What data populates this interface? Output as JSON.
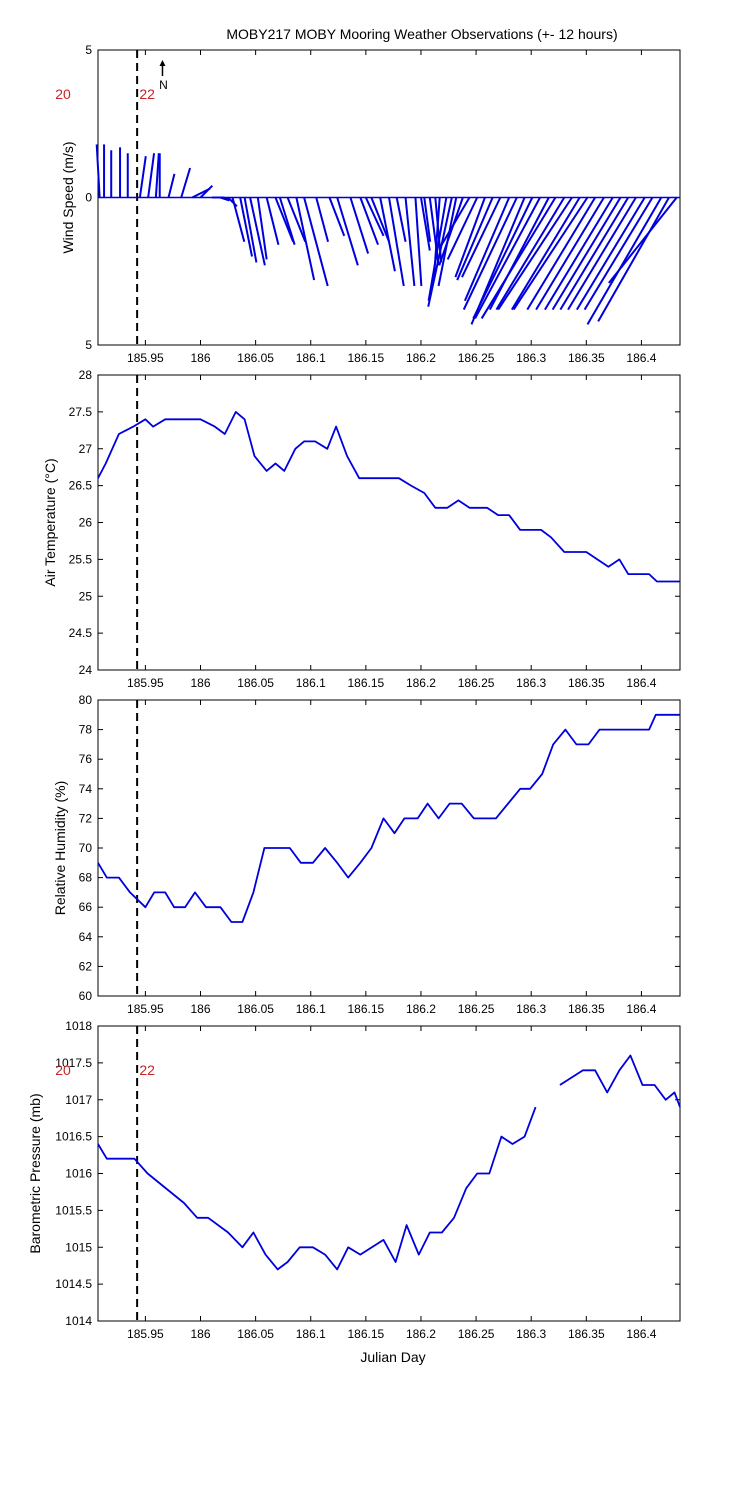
{
  "figure_title": "MOBY217 MOBY Mooring Weather Observations (+- 12 hours)",
  "colors": {
    "series": "#0000dd",
    "hour_label": "#cc2222",
    "axis": "#000000",
    "marker": "#000000"
  },
  "shared_x": {
    "label": "Julian Day",
    "xlim": [
      185.907,
      186.435
    ],
    "ticks": [
      185.95,
      186,
      186.05,
      186.1,
      186.15,
      186.2,
      186.25,
      186.3,
      186.35,
      186.4
    ],
    "tick_labels": [
      "185.95",
      "186",
      "186.05",
      "186.1",
      "186.15",
      "186.2",
      "186.25",
      "186.3",
      "186.35",
      "186.4"
    ],
    "current_time_marker": 185.9425
  },
  "hour_labels": [
    {
      "x": 185.907,
      "text": "20"
    },
    {
      "x": 185.9425,
      "text": "22"
    }
  ],
  "north_indicator": "N",
  "chart_data": [
    {
      "type": "vector",
      "name": "wind",
      "ylabel": "Wind Speed (m/s)",
      "ylim": [
        -5,
        5
      ],
      "yticks": [
        -5,
        0,
        5
      ],
      "ytick_labels": [
        "5",
        "0",
        "5"
      ],
      "x": [
        185.9085,
        185.9125,
        185.919,
        185.927,
        185.934,
        185.945,
        185.9525,
        185.9595,
        185.963,
        185.971,
        185.9825,
        185.9925,
        186.0,
        186.0105,
        186.018,
        186.021,
        186.025,
        186.029,
        186.036,
        186.04,
        186.045,
        186.052,
        186.06,
        186.068,
        186.072,
        186.079,
        186.087,
        186.094,
        186.105,
        186.117,
        186.124,
        186.136,
        186.145,
        186.15,
        186.155,
        186.163,
        186.171,
        186.178,
        186.186,
        186.195,
        186.2,
        186.203,
        186.208,
        186.213,
        186.217,
        186.223,
        186.228,
        186.232,
        186.238,
        186.244,
        186.251,
        186.258,
        186.265,
        186.272,
        186.28,
        186.287,
        186.294,
        186.301,
        186.308,
        186.316,
        186.322,
        186.33,
        186.337,
        186.344,
        186.351,
        186.358,
        186.366,
        186.374,
        186.381,
        186.388,
        186.395,
        186.403,
        186.41,
        186.418,
        186.425,
        186.432
      ],
      "u": [
        -0.1,
        0.0,
        0.0,
        0.0,
        0.0,
        0.2,
        0.2,
        0.1,
        0.0,
        0.2,
        0.3,
        0.6,
        0.4,
        0.4,
        0.3,
        0.2,
        0.3,
        0.4,
        0.4,
        0.4,
        0.5,
        0.3,
        0.4,
        0.6,
        0.5,
        0.6,
        0.6,
        0.8,
        0.4,
        0.5,
        0.7,
        0.6,
        0.6,
        0.6,
        0.6,
        0.5,
        0.5,
        0.3,
        0.3,
        0.2,
        0.3,
        0.2,
        0.3,
        0.2,
        -0.2,
        -0.6,
        -0.8,
        -0.6,
        -0.8,
        -1.0,
        -1.0,
        -1.0,
        -1.2,
        -1.3,
        -1.5,
        -1.8,
        -1.8,
        -2.0,
        -2.2,
        -2.0,
        -2.5,
        -2.3,
        -2.5,
        -2.3,
        -2.5,
        -2.3,
        -2.3,
        -2.3,
        -2.3,
        -2.3,
        -2.3,
        -2.3,
        -2.3,
        -2.5,
        -2.4,
        -2.3
      ],
      "v": [
        1.8,
        1.8,
        1.6,
        1.7,
        1.5,
        1.4,
        1.5,
        1.5,
        1.5,
        0.8,
        1.0,
        0.3,
        0.4,
        0.0,
        -0.1,
        -0.1,
        -0.3,
        -1.5,
        -2.0,
        -2.2,
        -2.3,
        -2.1,
        -1.6,
        -1.5,
        -1.6,
        -1.5,
        -2.8,
        -3.0,
        -1.5,
        -1.3,
        -2.3,
        -1.9,
        -1.6,
        -1.3,
        -1.5,
        -2.5,
        -3.0,
        -1.5,
        -3.0,
        -3.0,
        -1.8,
        -1.5,
        -2.3,
        -2.2,
        -2.8,
        -3.5,
        -3.7,
        -3.0,
        -2.3,
        -1.7,
        -2.1,
        -2.7,
        -2.8,
        -2.7,
        -3.5,
        -3.8,
        -4.3,
        -4.1,
        -4.1,
        -3.8,
        -4.1,
        -3.8,
        -3.8,
        -3.8,
        -3.8,
        -3.8,
        -3.8,
        -3.8,
        -3.8,
        -3.8,
        -3.8,
        -3.8,
        -3.8,
        -4.3,
        -4.2,
        -2.9
      ]
    },
    {
      "type": "line",
      "name": "air_temperature",
      "ylabel": "Air Temperature (°C)",
      "ylim": [
        24,
        28
      ],
      "yticks": [
        24,
        24.5,
        25,
        25.5,
        26,
        26.5,
        27,
        27.5,
        28
      ],
      "ytick_labels": [
        "24",
        "24.5",
        "25",
        "25.5",
        "26",
        "26.5",
        "27",
        "27.5",
        "28"
      ],
      "segments": [
        [
          [
            185.907,
            26.6
          ],
          [
            185.914,
            26.8
          ],
          [
            185.926,
            27.2
          ],
          [
            185.939,
            27.3
          ],
          [
            185.95,
            27.4
          ],
          [
            185.957,
            27.3
          ],
          [
            185.968,
            27.4
          ],
          [
            185.99,
            27.4
          ],
          [
            186.0,
            27.4
          ],
          [
            186.013,
            27.3
          ],
          [
            186.022,
            27.2
          ],
          [
            186.032,
            27.5
          ],
          [
            186.04,
            27.4
          ],
          [
            186.049,
            26.9
          ],
          [
            186.06,
            26.7
          ],
          [
            186.068,
            26.8
          ],
          [
            186.076,
            26.7
          ],
          [
            186.086,
            27.0
          ],
          [
            186.094,
            27.1
          ],
          [
            186.104,
            27.1
          ],
          [
            186.115,
            27.0
          ],
          [
            186.123,
            27.3
          ],
          [
            186.133,
            26.9
          ],
          [
            186.144,
            26.6
          ],
          [
            186.18,
            26.6
          ],
          [
            186.191,
            26.5
          ],
          [
            186.203,
            26.4
          ],
          [
            186.213,
            26.2
          ],
          [
            186.224,
            26.2
          ],
          [
            186.234,
            26.3
          ],
          [
            186.244,
            26.2
          ],
          [
            186.26,
            26.2
          ],
          [
            186.27,
            26.1
          ],
          [
            186.28,
            26.1
          ],
          [
            186.29,
            25.9
          ],
          [
            186.309,
            25.9
          ],
          [
            186.318,
            25.8
          ],
          [
            186.33,
            25.6
          ],
          [
            186.35,
            25.6
          ],
          [
            186.37,
            25.4
          ],
          [
            186.38,
            25.5
          ],
          [
            186.388,
            25.3
          ],
          [
            186.407,
            25.3
          ],
          [
            186.414,
            25.2
          ],
          [
            186.435,
            25.2
          ]
        ]
      ]
    },
    {
      "type": "line",
      "name": "relative_humidity",
      "ylabel": "Relative Humidity (%)",
      "ylim": [
        60,
        80
      ],
      "yticks": [
        60,
        62,
        64,
        66,
        68,
        70,
        72,
        74,
        76,
        78,
        80
      ],
      "ytick_labels": [
        "60",
        "62",
        "64",
        "66",
        "68",
        "70",
        "72",
        "74",
        "76",
        "78",
        "80"
      ],
      "segments": [
        [
          [
            185.907,
            69
          ],
          [
            185.915,
            68
          ],
          [
            185.926,
            68
          ],
          [
            185.936,
            67
          ],
          [
            185.95,
            66
          ],
          [
            185.958,
            67
          ],
          [
            185.968,
            67
          ],
          [
            185.976,
            66
          ],
          [
            185.986,
            66
          ],
          [
            185.995,
            67
          ],
          [
            186.005,
            66
          ],
          [
            186.018,
            66
          ],
          [
            186.028,
            65
          ],
          [
            186.038,
            65
          ],
          [
            186.048,
            67
          ],
          [
            186.058,
            70
          ],
          [
            186.081,
            70
          ],
          [
            186.091,
            69
          ],
          [
            186.102,
            69
          ],
          [
            186.113,
            70
          ],
          [
            186.124,
            69
          ],
          [
            186.134,
            68
          ],
          [
            186.145,
            69
          ],
          [
            186.155,
            70
          ],
          [
            186.166,
            72
          ],
          [
            186.176,
            71
          ],
          [
            186.185,
            72
          ],
          [
            186.197,
            72
          ],
          [
            186.206,
            73
          ],
          [
            186.216,
            72
          ],
          [
            186.226,
            73
          ],
          [
            186.237,
            73
          ],
          [
            186.248,
            72
          ],
          [
            186.268,
            72
          ],
          [
            186.29,
            74
          ],
          [
            186.299,
            74
          ],
          [
            186.31,
            75
          ],
          [
            186.32,
            77
          ],
          [
            186.331,
            78
          ],
          [
            186.341,
            77
          ],
          [
            186.352,
            77
          ],
          [
            186.362,
            78
          ],
          [
            186.407,
            78
          ],
          [
            186.413,
            79
          ],
          [
            186.435,
            79
          ]
        ]
      ]
    },
    {
      "type": "line",
      "name": "barometric_pressure",
      "ylabel": "Barometric Pressure (mb)",
      "ylim": [
        1014,
        1018
      ],
      "yticks": [
        1014,
        1014.5,
        1015,
        1015.5,
        1016,
        1016.5,
        1017,
        1017.5,
        1018
      ],
      "ytick_labels": [
        "1014",
        "1014.5",
        "1015",
        "1015.5",
        "1016",
        "1016.5",
        "1017",
        "1017.5",
        "1018"
      ],
      "segments": [
        [
          [
            185.907,
            1016.4
          ],
          [
            185.915,
            1016.2
          ],
          [
            185.94,
            1016.2
          ],
          [
            185.952,
            1016.0
          ],
          [
            185.985,
            1015.6
          ],
          [
            185.997,
            1015.4
          ],
          [
            186.007,
            1015.4
          ],
          [
            186.025,
            1015.2
          ],
          [
            186.038,
            1015.0
          ],
          [
            186.048,
            1015.2
          ],
          [
            186.059,
            1014.9
          ],
          [
            186.07,
            1014.7
          ],
          [
            186.079,
            1014.8
          ],
          [
            186.09,
            1015.0
          ],
          [
            186.102,
            1015.0
          ],
          [
            186.113,
            1014.9
          ],
          [
            186.124,
            1014.7
          ],
          [
            186.134,
            1015.0
          ],
          [
            186.145,
            1014.9
          ],
          [
            186.166,
            1015.1
          ],
          [
            186.177,
            1014.8
          ],
          [
            186.187,
            1015.3
          ],
          [
            186.198,
            1014.9
          ],
          [
            186.208,
            1015.2
          ],
          [
            186.219,
            1015.2
          ],
          [
            186.23,
            1015.4
          ],
          [
            186.241,
            1015.8
          ],
          [
            186.251,
            1016.0
          ],
          [
            186.262,
            1016.0
          ],
          [
            186.273,
            1016.5
          ],
          [
            186.283,
            1016.4
          ],
          [
            186.294,
            1016.5
          ],
          [
            186.304,
            1016.9
          ]
        ],
        [
          [
            186.326,
            1017.2
          ],
          [
            186.347,
            1017.4
          ],
          [
            186.358,
            1017.4
          ],
          [
            186.369,
            1017.1
          ],
          [
            186.38,
            1017.4
          ],
          [
            186.39,
            1017.6
          ],
          [
            186.401,
            1017.2
          ],
          [
            186.412,
            1017.2
          ],
          [
            186.422,
            1017.0
          ],
          [
            186.43,
            1017.1
          ],
          [
            186.435,
            1016.9
          ]
        ]
      ]
    }
  ]
}
